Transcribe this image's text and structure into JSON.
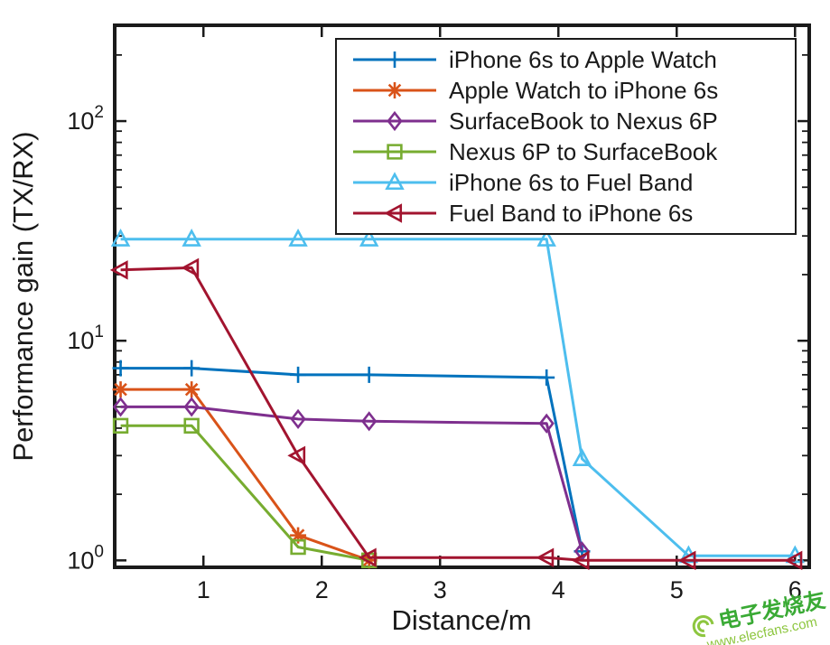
{
  "chart_data": {
    "type": "line",
    "title": "",
    "xlabel": "Distance/m",
    "ylabel": "Performance gain (TX/RX)",
    "xscale": "linear",
    "yscale": "log",
    "xlim": [
      0.25,
      6.12
    ],
    "ylim": [
      0.93,
      273
    ],
    "xticks": [
      1,
      2,
      3,
      4,
      5,
      6
    ],
    "yticks": [
      {
        "value": 1,
        "label_base": "10",
        "label_exp": "0"
      },
      {
        "value": 10,
        "label_base": "10",
        "label_exp": "1"
      },
      {
        "value": 100,
        "label_base": "10",
        "label_exp": "2"
      }
    ],
    "grid": false,
    "legend_position": "top-inside",
    "axis_color": "#1a1a1a",
    "series": [
      {
        "name": "iPhone 6s to Apple Watch",
        "color": "#0072BD",
        "marker": "plus",
        "x": [
          0.3,
          0.9,
          1.8,
          2.4,
          3.9,
          4.2
        ],
        "y": [
          7.5,
          7.5,
          7.0,
          7.0,
          6.8,
          1.1
        ]
      },
      {
        "name": "Apple Watch to iPhone 6s",
        "color": "#D95319",
        "marker": "asterisk",
        "x": [
          0.3,
          0.9,
          1.8,
          2.4
        ],
        "y": [
          6.0,
          6.0,
          1.3,
          1.0
        ]
      },
      {
        "name": "SurfaceBook to Nexus 6P",
        "color": "#7E2F8E",
        "marker": "diamond",
        "x": [
          0.3,
          0.9,
          1.8,
          2.4,
          3.9,
          4.2
        ],
        "y": [
          5.0,
          5.0,
          4.4,
          4.3,
          4.2,
          1.1
        ]
      },
      {
        "name": "Nexus 6P to SurfaceBook",
        "color": "#77AC30",
        "marker": "square",
        "x": [
          0.3,
          0.9,
          1.8,
          2.4
        ],
        "y": [
          4.1,
          4.1,
          1.15,
          1.0
        ]
      },
      {
        "name": "iPhone 6s to Fuel Band",
        "color": "#4DBEEE",
        "marker": "triangle-up",
        "x": [
          0.3,
          0.9,
          1.8,
          2.4,
          3.9,
          4.2,
          5.1,
          6.0
        ],
        "y": [
          29,
          29,
          29,
          29,
          29,
          2.9,
          1.05,
          1.05
        ]
      },
      {
        "name": "Fuel Band to iPhone 6s",
        "color": "#A2142F",
        "marker": "triangle-left",
        "x": [
          0.3,
          0.9,
          1.8,
          2.4,
          3.9,
          4.2,
          5.1,
          6.0
        ],
        "y": [
          21,
          21.5,
          3.0,
          1.03,
          1.03,
          1.0,
          1.0,
          1.0
        ]
      }
    ]
  },
  "watermark": {
    "brand": "电子发烧友",
    "url": "www.elecfans.com",
    "brand_color": "#3aaa35",
    "url_color": "#8dc63f"
  }
}
